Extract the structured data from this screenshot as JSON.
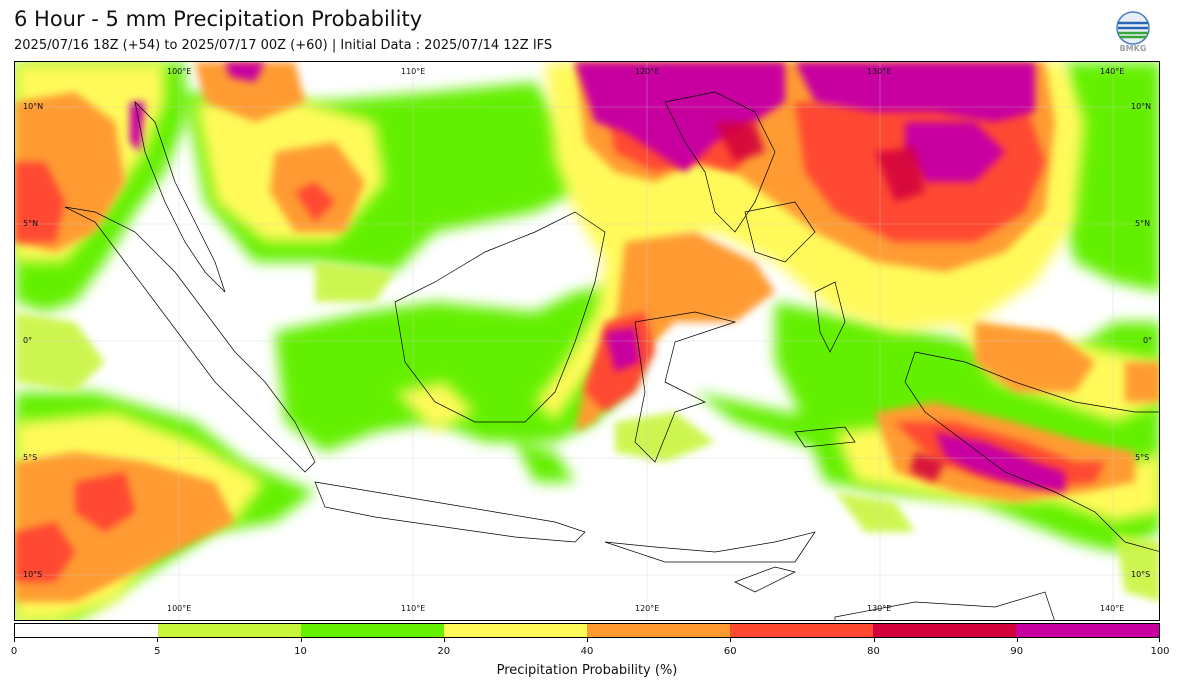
{
  "header": {
    "title": "6 Hour - 5 mm Precipitation Probability",
    "subtitle": "2025/07/16 18Z (+54) to 2025/07/17 00Z (+60) | Initial Data : 2025/07/14 12Z IFS",
    "logo_text": "BMKG"
  },
  "map": {
    "lon_labels_top": [
      "100°E",
      "110°E",
      "120°E",
      "130°E",
      "140°E"
    ],
    "lon_labels_bottom": [
      "100°E",
      "110°E",
      "120°E",
      "130°E",
      "140°E"
    ],
    "lat_labels_left": [
      "10°N",
      "5°N",
      "0°",
      "5°S",
      "10°S"
    ],
    "lat_labels_right": [
      "10°N",
      "5°N",
      "0°",
      "5°S",
      "10°S"
    ],
    "colors": {
      "p0": "#ffffff",
      "p5": "#c8f53c",
      "p10": "#64f000",
      "p20": "#fffa5a",
      "p40": "#ff9b32",
      "p60": "#ff4a32",
      "p80": "#d2003c",
      "p90": "#c800a0"
    }
  },
  "colorbar": {
    "colors": [
      "#ffffff",
      "#c8f53c",
      "#64f000",
      "#fffa5a",
      "#ff9b32",
      "#ff4a32",
      "#d2003c",
      "#c800a0"
    ],
    "ticks": [
      "0",
      "5",
      "10",
      "20",
      "40",
      "60",
      "80",
      "90",
      "100"
    ],
    "label": "Precipitation Probability (%)"
  }
}
